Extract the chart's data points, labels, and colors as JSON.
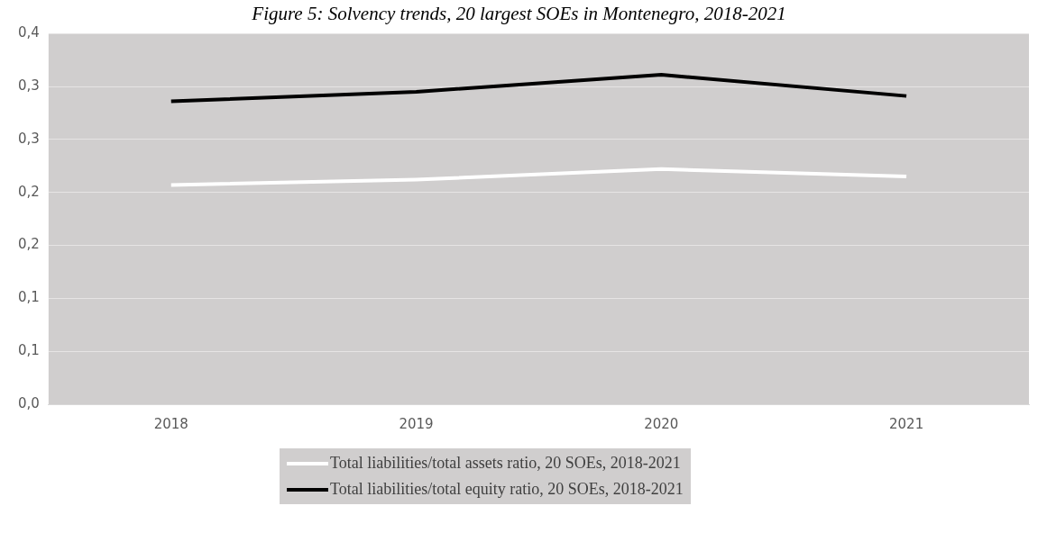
{
  "chart_data": {
    "type": "line",
    "title": "Figure 5: Solvency trends, 20 largest SOEs in Montenegro, 2018-2021",
    "categories": [
      "2018",
      "2019",
      "2020",
      "2021"
    ],
    "series": [
      {
        "name": "Total liabilities/total assets ratio, 20 SOEs, 2018-2021",
        "color": "#ffffff",
        "values": [
          0.207,
          0.212,
          0.222,
          0.215
        ]
      },
      {
        "name": "Total liabilities/total equity ratio, 20 SOEs, 2018-2021",
        "color": "#000000",
        "values": [
          0.286,
          0.295,
          0.311,
          0.291
        ]
      }
    ],
    "ylim": [
      0,
      0.35
    ],
    "yticks": [
      {
        "value": 0,
        "label": "0,0"
      },
      {
        "value": 0.05,
        "label": "0,1"
      },
      {
        "value": 0.1,
        "label": "0,1"
      },
      {
        "value": 0.15,
        "label": "0,2"
      },
      {
        "value": 0.2,
        "label": "0,2"
      },
      {
        "value": 0.25,
        "label": "0,3"
      },
      {
        "value": 0.3,
        "label": "0,3"
      },
      {
        "value": 0.35,
        "label": "0,4"
      }
    ],
    "grid": "y",
    "legend": "bottom",
    "marker": "none",
    "line_style": "solid"
  }
}
